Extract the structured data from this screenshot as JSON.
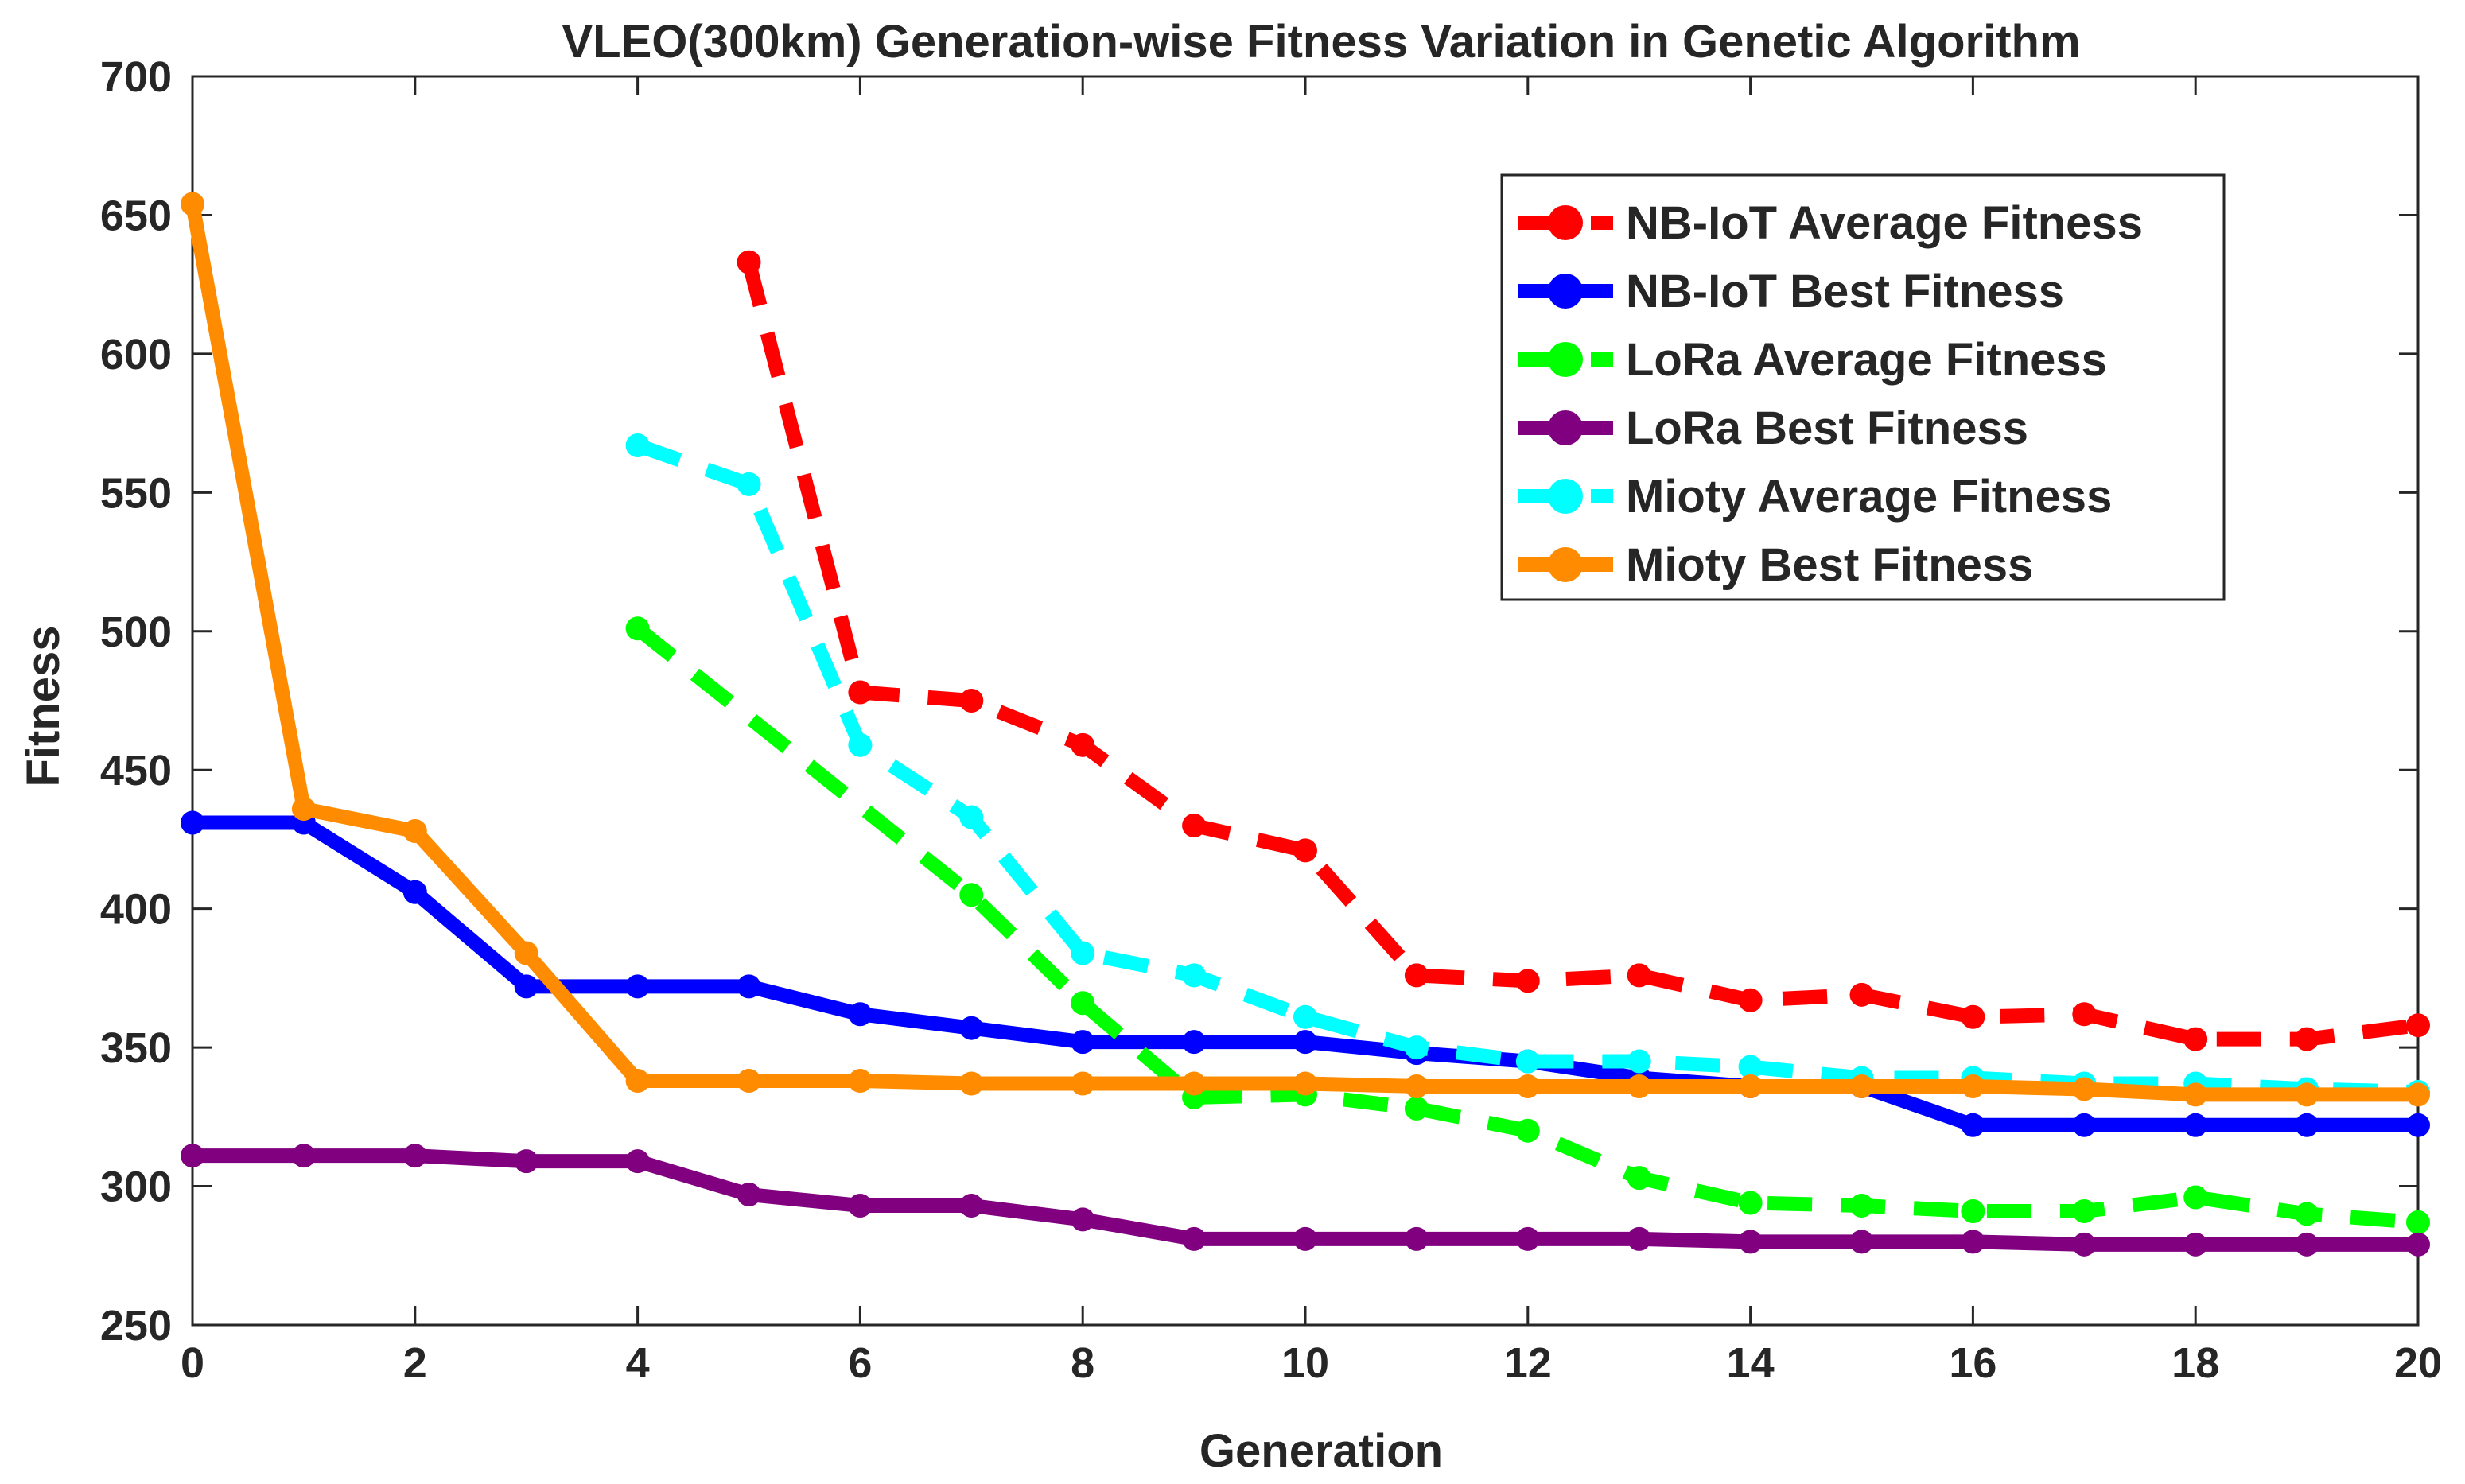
{
  "chart_data": {
    "type": "line",
    "title": "VLEO(300km) Generation-wise Fitness Variation in Genetic Algorithm",
    "xlabel": "Generation",
    "ylabel": "Fitness",
    "xlim": [
      0,
      20
    ],
    "ylim": [
      250,
      700
    ],
    "xticks": [
      "0",
      "2",
      "4",
      "6",
      "8",
      "10",
      "12",
      "14",
      "16",
      "18",
      "20"
    ],
    "yticks": [
      "250",
      "300",
      "350",
      "400",
      "450",
      "500",
      "550",
      "600",
      "650",
      "700"
    ],
    "legend_position": "top-right",
    "series": [
      {
        "name": "NB-IoT Average Fitness",
        "color": "#ff0000",
        "style": "dashed",
        "x": [
          5,
          6,
          7,
          8,
          9,
          10,
          11,
          12,
          13,
          14,
          15,
          16,
          17,
          18,
          19,
          20
        ],
        "values": [
          633,
          478,
          475,
          459,
          430,
          421,
          376,
          374,
          376,
          367,
          369,
          361,
          362,
          353,
          353,
          358
        ]
      },
      {
        "name": "NB-IoT Best Fitness",
        "color": "#0000ff",
        "style": "solid",
        "x": [
          0,
          1,
          2,
          3,
          4,
          5,
          6,
          7,
          8,
          9,
          10,
          11,
          12,
          13,
          14,
          15,
          16,
          17,
          18,
          19,
          20
        ],
        "values": [
          431,
          431,
          406,
          372,
          372,
          372,
          362,
          357,
          352,
          352,
          352,
          348,
          345,
          339,
          336,
          336,
          322,
          322,
          322,
          322,
          322
        ]
      },
      {
        "name": "LoRa Average Fitness",
        "color": "#00ff00",
        "style": "dashed",
        "x": [
          4,
          7,
          8,
          9,
          10,
          11,
          12,
          13,
          14,
          15,
          16,
          17,
          18,
          19,
          20
        ],
        "values": [
          501,
          405,
          366,
          332,
          333,
          328,
          320,
          303,
          294,
          293,
          291,
          291,
          296,
          290,
          287
        ]
      },
      {
        "name": "LoRa Best Fitness",
        "color": "#800080",
        "style": "solid",
        "x": [
          0,
          1,
          2,
          3,
          4,
          5,
          6,
          7,
          8,
          9,
          10,
          11,
          12,
          13,
          14,
          15,
          16,
          17,
          18,
          19,
          20
        ],
        "values": [
          311,
          311,
          311,
          309,
          309,
          297,
          293,
          293,
          288,
          281,
          281,
          281,
          281,
          281,
          280,
          280,
          280,
          279,
          279,
          279,
          279
        ]
      },
      {
        "name": "Mioty Average Fitness",
        "color": "#00ffff",
        "style": "dashed",
        "x": [
          4,
          5,
          6,
          7,
          8,
          9,
          10,
          11,
          12,
          13,
          14,
          15,
          16,
          17,
          18,
          19,
          20
        ],
        "values": [
          567,
          553,
          459,
          433,
          384,
          376,
          361,
          350,
          345,
          345,
          343,
          339,
          339,
          337,
          337,
          335,
          334
        ]
      },
      {
        "name": "Mioty Best Fitness",
        "color": "#ff8c00",
        "style": "solid",
        "x": [
          0,
          1,
          2,
          3,
          4,
          5,
          6,
          7,
          8,
          9,
          10,
          11,
          12,
          13,
          14,
          15,
          16,
          17,
          18,
          19,
          20
        ],
        "values": [
          654,
          436,
          428,
          384,
          338,
          338,
          338,
          337,
          337,
          337,
          337,
          336,
          336,
          336,
          336,
          336,
          336,
          335,
          333,
          333,
          333
        ]
      }
    ]
  }
}
